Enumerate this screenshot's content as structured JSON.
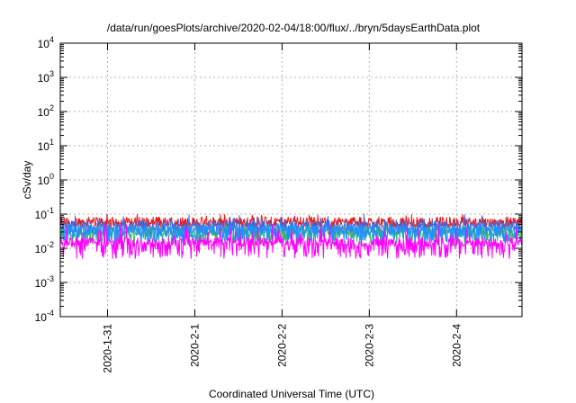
{
  "chart_data": {
    "type": "line",
    "title": "/data/run/goesPlots/archive/2020-02-04/18:00/flux/../bryn/5daysEarthData.plot",
    "xlabel": "Coordinated Universal Time (UTC)",
    "ylabel": "cSv/day",
    "y_scale": "log",
    "ylim": [
      0.0001,
      10000
    ],
    "y_ticks": [
      {
        "value": 0.0001,
        "base": "10",
        "exp": "-4"
      },
      {
        "value": 0.001,
        "base": "10",
        "exp": "-3"
      },
      {
        "value": 0.01,
        "base": "10",
        "exp": "-2"
      },
      {
        "value": 0.1,
        "base": "10",
        "exp": "-1"
      },
      {
        "value": 1,
        "base": "10",
        "exp": "0"
      },
      {
        "value": 10,
        "base": "10",
        "exp": "1"
      },
      {
        "value": 100,
        "base": "10",
        "exp": "2"
      },
      {
        "value": 1000,
        "base": "10",
        "exp": "3"
      },
      {
        "value": 10000,
        "base": "10",
        "exp": "4"
      }
    ],
    "xlim": [
      "2020-01-30T11:00",
      "2020-02-04T18:00"
    ],
    "x_ticks": [
      "2020-1-31",
      "2020-2-1",
      "2020-2-2",
      "2020-2-3",
      "2020-2-4"
    ],
    "grid": true,
    "series": [
      {
        "color": "#e41a1c",
        "typical": 0.06,
        "min": 0.04,
        "max": 0.1
      },
      {
        "color": "#4169e1",
        "typical": 0.045,
        "min": 0.025,
        "max": 0.1
      },
      {
        "color": "#3cb371",
        "typical": 0.03,
        "min": 0.012,
        "max": 0.05
      },
      {
        "color": "#1e90ff",
        "typical": 0.035,
        "min": 0.015,
        "max": 0.06
      },
      {
        "color": "#ff00ff",
        "typical": 0.015,
        "min": 0.005,
        "max": 0.05
      }
    ]
  }
}
